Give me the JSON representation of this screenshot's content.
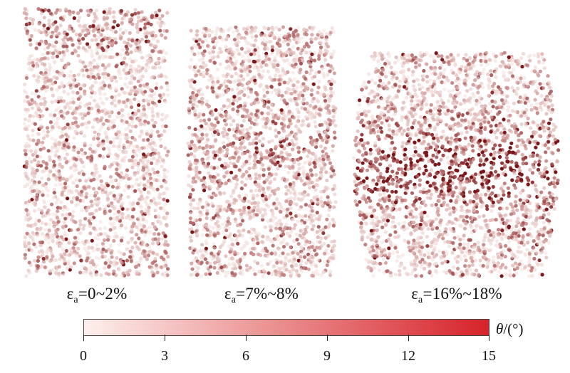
{
  "panels": [
    {
      "symbol": "ε",
      "subscript": "a",
      "value": "=0~2%",
      "level": "low"
    },
    {
      "symbol": "ε",
      "subscript": "a",
      "value": "=7%~8%",
      "level": "medium"
    },
    {
      "symbol": "ε",
      "subscript": "a",
      "value": "=16%~18%",
      "level": "high"
    }
  ],
  "colorbar": {
    "title_symbol": "θ",
    "title_unit": "/(°)",
    "ticks": [
      "0",
      "3",
      "6",
      "9",
      "12",
      "15"
    ],
    "min": 0,
    "max": 15,
    "color_low": "#fdf0ec",
    "color_high": "#d6232a",
    "particle_dark": "#7a1518"
  }
}
